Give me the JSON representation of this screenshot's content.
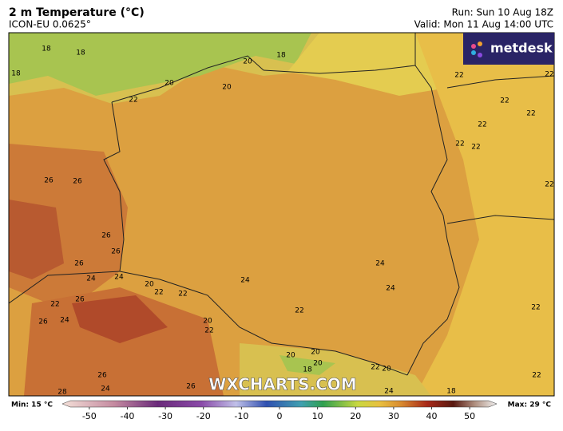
{
  "header": {
    "title": "2 m Temperature (°C)",
    "model": "ICON-EU 0.0625°",
    "run": "Run: Sun 10 Aug 18Z",
    "valid": "Valid: Mon 11 Aug 14:00 UTC"
  },
  "logo": "metdesk",
  "watermark": "WXCHARTS.COM",
  "contour_labels": [
    18,
    18,
    18,
    18,
    20,
    20,
    20,
    22,
    22,
    22,
    22,
    22,
    22,
    22,
    22,
    22,
    26,
    26,
    26,
    26,
    26,
    24,
    24,
    20,
    22,
    22,
    22,
    26,
    26,
    24,
    24,
    24,
    24,
    22,
    20,
    22,
    20,
    20,
    20,
    18,
    22,
    20,
    22,
    22,
    26,
    24,
    26,
    28,
    24,
    18
  ],
  "colorbar": {
    "min_label": "Min: 15 °C",
    "max_label": "Max: 29 °C",
    "lim": [
      -55,
      55
    ],
    "ticks": [
      -50,
      -40,
      -30,
      -20,
      -10,
      0,
      10,
      20,
      30,
      40,
      50
    ]
  }
}
